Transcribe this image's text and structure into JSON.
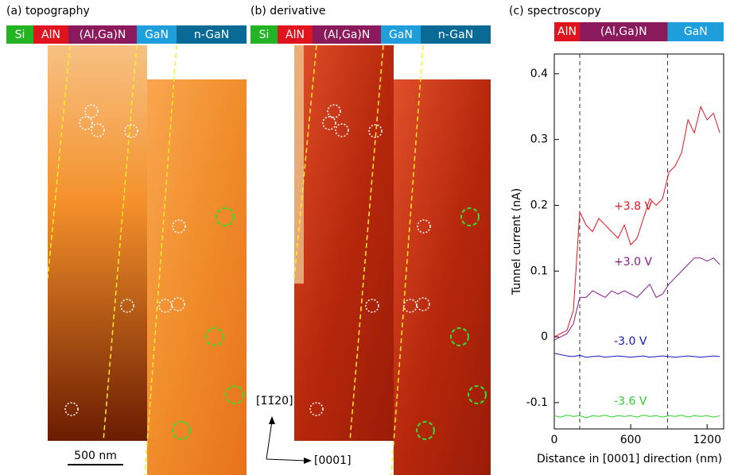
{
  "panels": [
    {
      "label": "(a) topography",
      "layers": [
        "Si",
        "AlN",
        "(Al,Ga)N",
        "GaN",
        "n-GaN"
      ]
    },
    {
      "label": "(b) derivative",
      "layers": [
        "Si",
        "AlN",
        "(Al,Ga)N",
        "GaN",
        "n-GaN"
      ]
    }
  ],
  "scale_bar": "500 nm",
  "directions": [
    "[1̄1̄20]",
    "[0001]"
  ],
  "chart_data": {
    "type": "line",
    "title": "(c) spectroscopy",
    "xlabel": "Distance in [0001] direction (nm)",
    "ylabel": "Tunnel current (nA)",
    "regions": [
      "AlN",
      "(Al,Ga)N",
      "GaN"
    ],
    "region_colors": [
      "#e0141e",
      "#8b1a5c",
      "#1e9fdc"
    ],
    "boundaries": [
      200,
      890
    ],
    "xlim": [
      0,
      1330
    ],
    "ylim": [
      -0.14,
      0.43
    ],
    "xticks": [
      0,
      600,
      1200
    ],
    "yticks": [
      -0.1,
      0,
      0.1,
      0.2,
      0.3,
      0.4
    ],
    "x": [
      0,
      50,
      100,
      150,
      200,
      250,
      300,
      350,
      400,
      450,
      500,
      550,
      600,
      650,
      700,
      750,
      800,
      850,
      900,
      950,
      1000,
      1050,
      1100,
      1150,
      1200,
      1250,
      1300
    ],
    "series": [
      {
        "name": "+3.8 V",
        "color": "#e8141e",
        "values": [
          0,
          0.005,
          0.01,
          0.04,
          0.19,
          0.17,
          0.16,
          0.18,
          0.17,
          0.16,
          0.15,
          0.17,
          0.14,
          0.15,
          0.18,
          0.21,
          0.2,
          0.21,
          0.25,
          0.26,
          0.28,
          0.33,
          0.31,
          0.35,
          0.33,
          0.34,
          0.31
        ]
      },
      {
        "name": "+3.0 V",
        "color": "#8c1a8c",
        "values": [
          -0.005,
          0,
          0.005,
          0.02,
          0.06,
          0.06,
          0.07,
          0.065,
          0.06,
          0.07,
          0.065,
          0.07,
          0.065,
          0.06,
          0.07,
          0.08,
          0.06,
          0.065,
          0.08,
          0.09,
          0.1,
          0.11,
          0.12,
          0.12,
          0.115,
          0.12,
          0.11
        ]
      },
      {
        "name": "-3.0 V",
        "color": "#1414c8",
        "values": [
          -0.025,
          -0.027,
          -0.029,
          -0.03,
          -0.028,
          -0.031,
          -0.03,
          -0.029,
          -0.031,
          -0.03,
          -0.029,
          -0.03,
          -0.031,
          -0.03,
          -0.029,
          -0.031,
          -0.03,
          -0.029,
          -0.03,
          -0.031,
          -0.03,
          -0.029,
          -0.03,
          -0.031,
          -0.03,
          -0.029,
          -0.03
        ]
      },
      {
        "name": "-3.6 V",
        "color": "#2ecc2e",
        "values": [
          -0.12,
          -0.122,
          -0.119,
          -0.121,
          -0.12,
          -0.123,
          -0.12,
          -0.121,
          -0.119,
          -0.122,
          -0.12,
          -0.121,
          -0.12,
          -0.122,
          -0.119,
          -0.121,
          -0.12,
          -0.122,
          -0.12,
          -0.121,
          -0.119,
          -0.122,
          -0.12,
          -0.121,
          -0.12,
          -0.122,
          -0.12
        ]
      }
    ]
  }
}
